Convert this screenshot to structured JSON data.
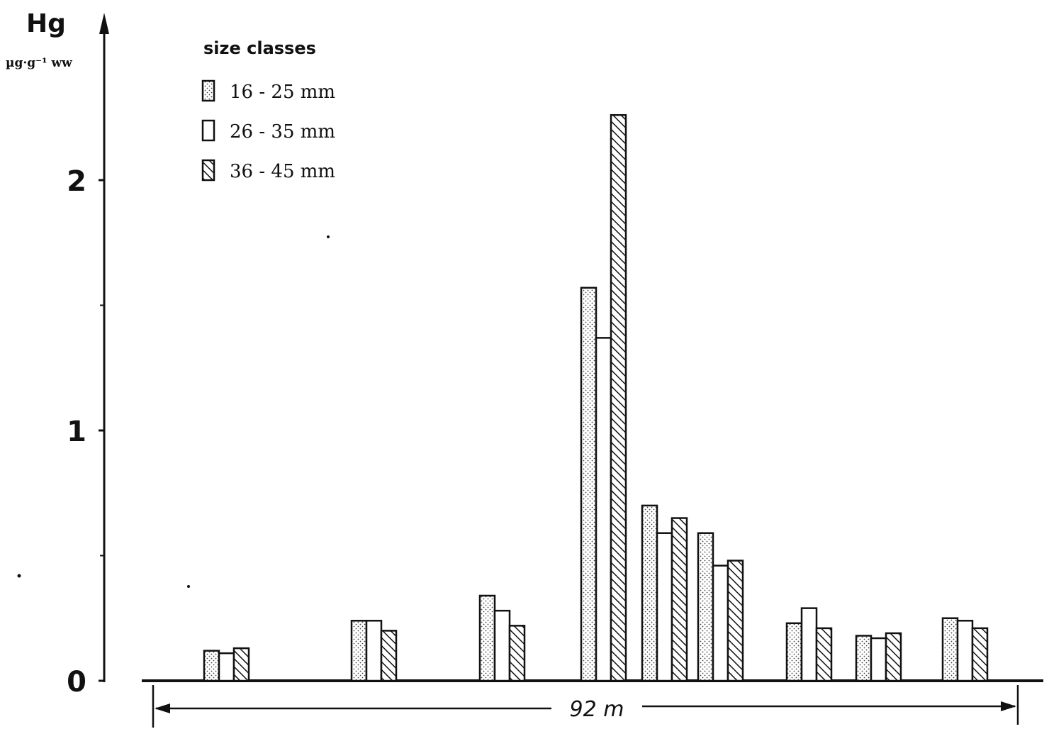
{
  "chart_data": {
    "type": "bar",
    "ylabel": "Hg",
    "ylabel_unit": "µg·g⁻¹ ww",
    "ylim": [
      0,
      2.5
    ],
    "yticks": [
      "0",
      "1",
      "2"
    ],
    "legend": {
      "title": "size classes",
      "placement": "top-left",
      "entries": [
        "16 - 25 mm",
        "26 - 35 mm",
        "36 - 45 mm"
      ]
    },
    "distance_label": "92 m",
    "groups": [
      {
        "values": [
          0.12,
          0.11,
          0.13
        ]
      },
      {
        "values": [
          0.24,
          0.24,
          0.2
        ]
      },
      {
        "values": [
          0.34,
          0.28,
          0.22
        ]
      },
      {
        "values": [
          1.57,
          1.37,
          2.26
        ]
      },
      {
        "values": [
          0.7,
          0.59,
          0.65
        ]
      },
      {
        "values": [
          0.59,
          0.46,
          0.48
        ]
      },
      {
        "values": [
          0.23,
          0.29,
          0.21
        ]
      },
      {
        "values": [
          0.18,
          0.17,
          0.19
        ]
      },
      {
        "values": [
          0.25,
          0.24,
          0.21
        ]
      }
    ],
    "series_colors": [
      "#f2f2f2",
      "#ffffff",
      "#ffffff"
    ]
  }
}
